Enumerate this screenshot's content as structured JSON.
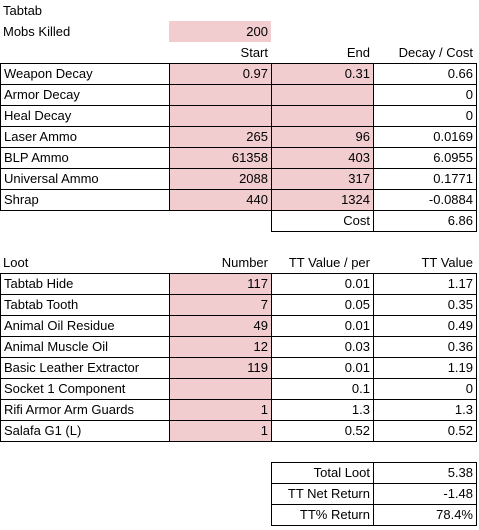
{
  "title": "Tabtab",
  "mobs_killed": {
    "label": "Mobs Killed",
    "value": 200
  },
  "decay": {
    "headers": [
      "Start",
      "End",
      "Decay / Cost"
    ],
    "rows": [
      [
        "Weapon Decay",
        0.97,
        0.31,
        0.66
      ],
      [
        "Armor Decay",
        null,
        null,
        0
      ],
      [
        "Heal Decay",
        null,
        null,
        0
      ],
      [
        "Laser Ammo",
        265,
        96,
        0.0169
      ],
      [
        "BLP Ammo",
        61358,
        403,
        6.0955
      ],
      [
        "Universal Ammo",
        2088,
        317,
        0.1771
      ],
      [
        "Shrap",
        440,
        1324,
        -0.0884
      ]
    ],
    "cost": {
      "label": "Cost",
      "value": 6.86
    }
  },
  "loot": {
    "headers": [
      "Loot",
      "Number",
      "TT Value / per",
      "TT Value"
    ],
    "rows": [
      [
        "Tabtab Hide",
        117,
        0.01,
        1.17
      ],
      [
        "Tabtab Tooth",
        7,
        0.05,
        0.35
      ],
      [
        "Animal Oil Residue",
        49,
        0.01,
        0.49
      ],
      [
        "Animal Muscle Oil",
        12,
        0.03,
        0.36
      ],
      [
        "Basic Leather Extractor",
        119,
        0.01,
        1.19
      ],
      [
        "Socket 1 Component",
        null,
        0.1,
        0
      ],
      [
        "Rifi Armor Arm Guards",
        1,
        1.3,
        1.3
      ],
      [
        "Salafa G1 (L)",
        1,
        0.52,
        0.52
      ]
    ]
  },
  "summary": [
    [
      "Total Loot",
      5.38
    ],
    [
      "TT Net Return",
      -1.48
    ],
    [
      "TT% Return",
      "78.4%"
    ]
  ]
}
